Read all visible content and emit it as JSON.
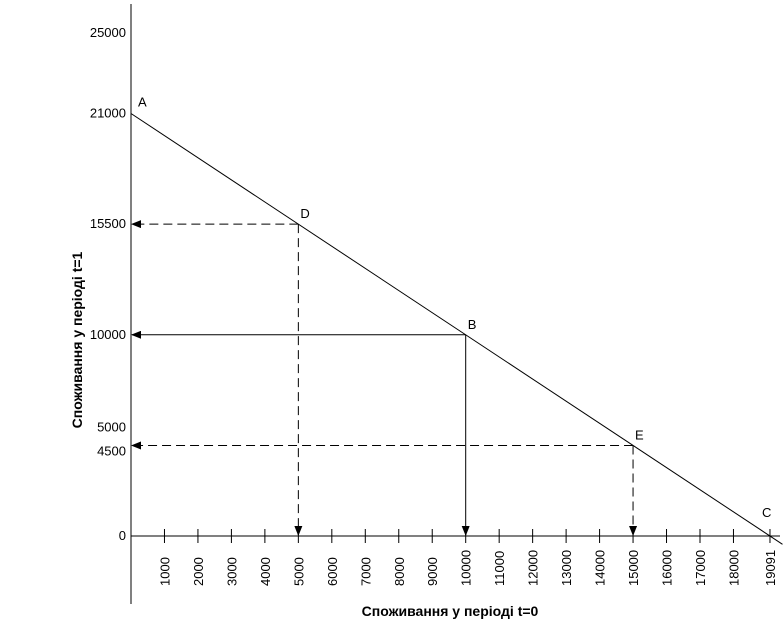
{
  "chart_data": {
    "type": "line",
    "xlabel": "Споживання у періоді t=0",
    "ylabel": "Споживання у періоді t=1",
    "xlim": [
      0,
      19300
    ],
    "ylim": [
      0,
      26000
    ],
    "x_ticks": [
      1000,
      2000,
      3000,
      4000,
      5000,
      6000,
      7000,
      8000,
      9000,
      10000,
      11000,
      12000,
      13000,
      14000,
      15000,
      16000,
      17000,
      18000,
      19091
    ],
    "y_ticks": [
      0,
      4500,
      5000,
      10000,
      15500,
      21000,
      25000
    ],
    "budget_line": {
      "points": [
        {
          "label": "A",
          "x": 0,
          "y": 21000
        },
        {
          "label": "D",
          "x": 5000,
          "y": 15500
        },
        {
          "label": "B",
          "x": 10000,
          "y": 10000
        },
        {
          "label": "E",
          "x": 15000,
          "y": 4500
        },
        {
          "label": "C",
          "x": 19091,
          "y": 0
        }
      ]
    },
    "projections": [
      {
        "point": "D",
        "x": 5000,
        "y": 15500,
        "style": "dashed"
      },
      {
        "point": "B",
        "x": 10000,
        "y": 10000,
        "style": "solid"
      },
      {
        "point": "E",
        "x": 15000,
        "y": 4500,
        "style": "dashed"
      }
    ],
    "grid": false,
    "legend": "none"
  }
}
